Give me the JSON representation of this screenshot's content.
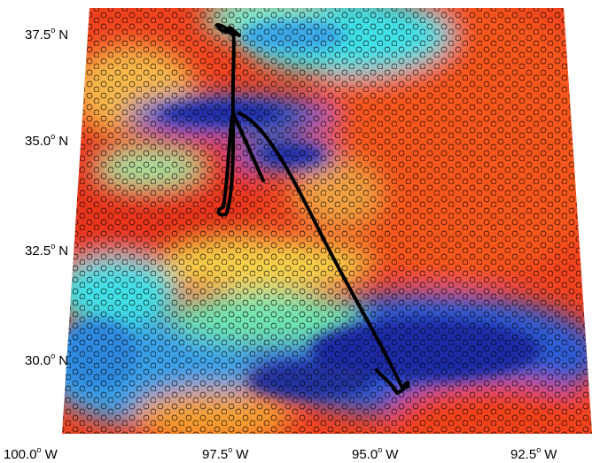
{
  "map": {
    "lat_labels": [
      {
        "value": "37.5",
        "dir": "N"
      },
      {
        "value": "35.0",
        "dir": "N"
      },
      {
        "value": "32.5",
        "dir": "N"
      },
      {
        "value": "30.0",
        "dir": "N"
      }
    ],
    "lon_labels": [
      {
        "value": "100.0",
        "dir": "W"
      },
      {
        "value": "97.5",
        "dir": "W"
      },
      {
        "value": "95.0",
        "dir": "W"
      },
      {
        "value": "92.5",
        "dir": "W"
      }
    ],
    "degree_symbol": "o",
    "colors": {
      "red": "#f2431f",
      "orange": "#ff7a1a",
      "yellow": "#f5e63a",
      "cyan": "#3fe0e6",
      "blue": "#2f5bd6",
      "dark_blue": "#1c2aa6",
      "track": "#000000"
    },
    "overlay_marker": "open-circle",
    "flight_track": "black-line"
  }
}
